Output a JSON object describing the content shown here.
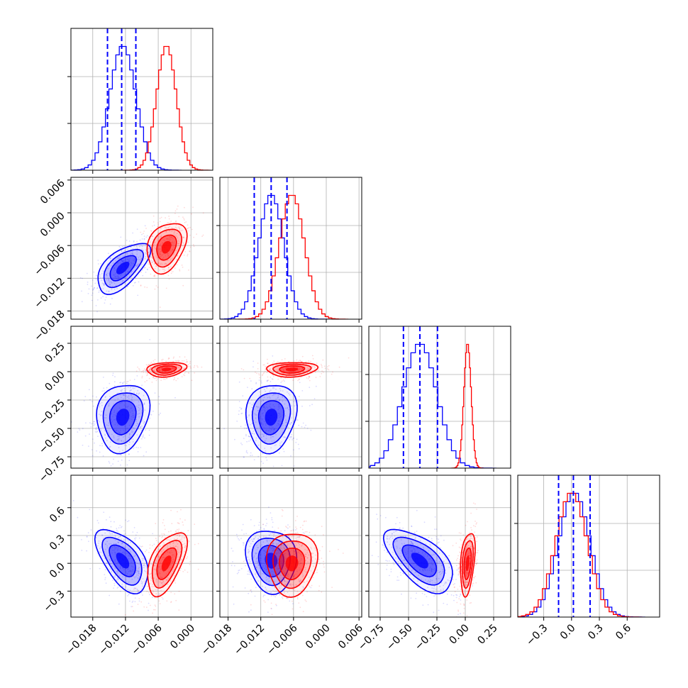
{
  "chart_data": {
    "type": "corner",
    "grid": true,
    "legend": "none",
    "xlabels": [],
    "series_colors": {
      "blue": "#0000ff",
      "red": "#ff0000"
    },
    "parameters": [
      {
        "index": 0,
        "range": [
          -0.022,
          0.004
        ],
        "ticks": [
          "-0.018",
          "-0.012",
          "-0.006",
          "0.000"
        ],
        "tick_values": [
          -0.018,
          -0.012,
          -0.006,
          0.0
        ]
      },
      {
        "index": 1,
        "range": [
          -0.0195,
          0.0065
        ],
        "ticks": [
          "-0.018",
          "-0.012",
          "-0.006",
          "0.000",
          "0.006"
        ],
        "tick_values": [
          -0.018,
          -0.012,
          -0.006,
          0.0,
          0.006
        ]
      },
      {
        "index": 2,
        "range": [
          -0.85,
          0.4
        ],
        "ticks": [
          "-0.75",
          "-0.50",
          "-0.25",
          "0.00",
          "0.25"
        ],
        "tick_values": [
          -0.75,
          -0.5,
          -0.25,
          0.0,
          0.25
        ]
      },
      {
        "index": 3,
        "range": [
          -0.58,
          0.95
        ],
        "ticks": [
          "-0.3",
          "0.0",
          "0.3",
          "0.6"
        ],
        "tick_values": [
          -0.3,
          0.0,
          0.3,
          0.6
        ]
      }
    ],
    "quantile_lines": {
      "color": "#0000ff",
      "style": "dashed",
      "p0": [
        -0.0153,
        -0.0127,
        -0.0101
      ],
      "p1": [
        -0.0132,
        -0.0101,
        -0.0072
      ],
      "p2": [
        -0.545,
        -0.4,
        -0.245
      ],
      "p3": [
        -0.14,
        0.02,
        0.2
      ]
    },
    "marginals": {
      "blue": {
        "p0": {
          "mu": -0.0125,
          "sigma": 0.0024
        },
        "p1": {
          "mu": -0.0101,
          "sigma": 0.0023
        },
        "p2": {
          "mu": -0.4,
          "sigma": 0.15
        },
        "p3": {
          "mu": 0.03,
          "sigma": 0.17
        }
      },
      "red": {
        "p0": {
          "mu": -0.0045,
          "sigma": 0.0018
        },
        "p1": {
          "mu": -0.0063,
          "sigma": 0.0023
        },
        "p2": {
          "mu": 0.02,
          "sigma": 0.032
        },
        "p3": {
          "mu": 0.0,
          "sigma": 0.17
        }
      }
    },
    "joint_2d": {
      "blue": [
        {
          "x": 0,
          "y": 1,
          "cx": -0.0125,
          "cy": -0.0101,
          "sx": 0.0024,
          "sy": 0.0023,
          "rho": 0.6
        },
        {
          "x": 0,
          "y": 2,
          "cx": -0.0125,
          "cy": -0.4,
          "sx": 0.0024,
          "sy": 0.15,
          "rho": 0.15
        },
        {
          "x": 1,
          "y": 2,
          "cx": -0.0101,
          "cy": -0.4,
          "sx": 0.0023,
          "sy": 0.15,
          "rho": 0.1
        },
        {
          "x": 0,
          "y": 3,
          "cx": -0.0125,
          "cy": 0.03,
          "sx": 0.0024,
          "sy": 0.17,
          "rho": -0.55
        },
        {
          "x": 1,
          "y": 3,
          "cx": -0.0101,
          "cy": 0.03,
          "sx": 0.0023,
          "sy": 0.17,
          "rho": -0.1
        },
        {
          "x": 2,
          "y": 3,
          "cx": -0.4,
          "cy": 0.03,
          "sx": 0.15,
          "sy": 0.17,
          "rho": -0.6
        }
      ],
      "red": [
        {
          "x": 0,
          "y": 1,
          "cx": -0.0045,
          "cy": -0.0063,
          "sx": 0.0018,
          "sy": 0.0023,
          "rho": 0.3
        },
        {
          "x": 0,
          "y": 2,
          "cx": -0.0045,
          "cy": 0.02,
          "sx": 0.0018,
          "sy": 0.032,
          "rho": 0.2
        },
        {
          "x": 1,
          "y": 2,
          "cx": -0.0063,
          "cy": 0.02,
          "sx": 0.0023,
          "sy": 0.032,
          "rho": 0.1
        },
        {
          "x": 0,
          "y": 3,
          "cx": -0.0045,
          "cy": 0.0,
          "sx": 0.0018,
          "sy": 0.17,
          "rho": 0.55
        },
        {
          "x": 1,
          "y": 3,
          "cx": -0.0063,
          "cy": 0.0,
          "sx": 0.0023,
          "sy": 0.17,
          "rho": 0.05
        },
        {
          "x": 2,
          "y": 3,
          "cx": 0.02,
          "cy": 0.0,
          "sx": 0.032,
          "sy": 0.17,
          "rho": 0.35
        }
      ]
    }
  }
}
